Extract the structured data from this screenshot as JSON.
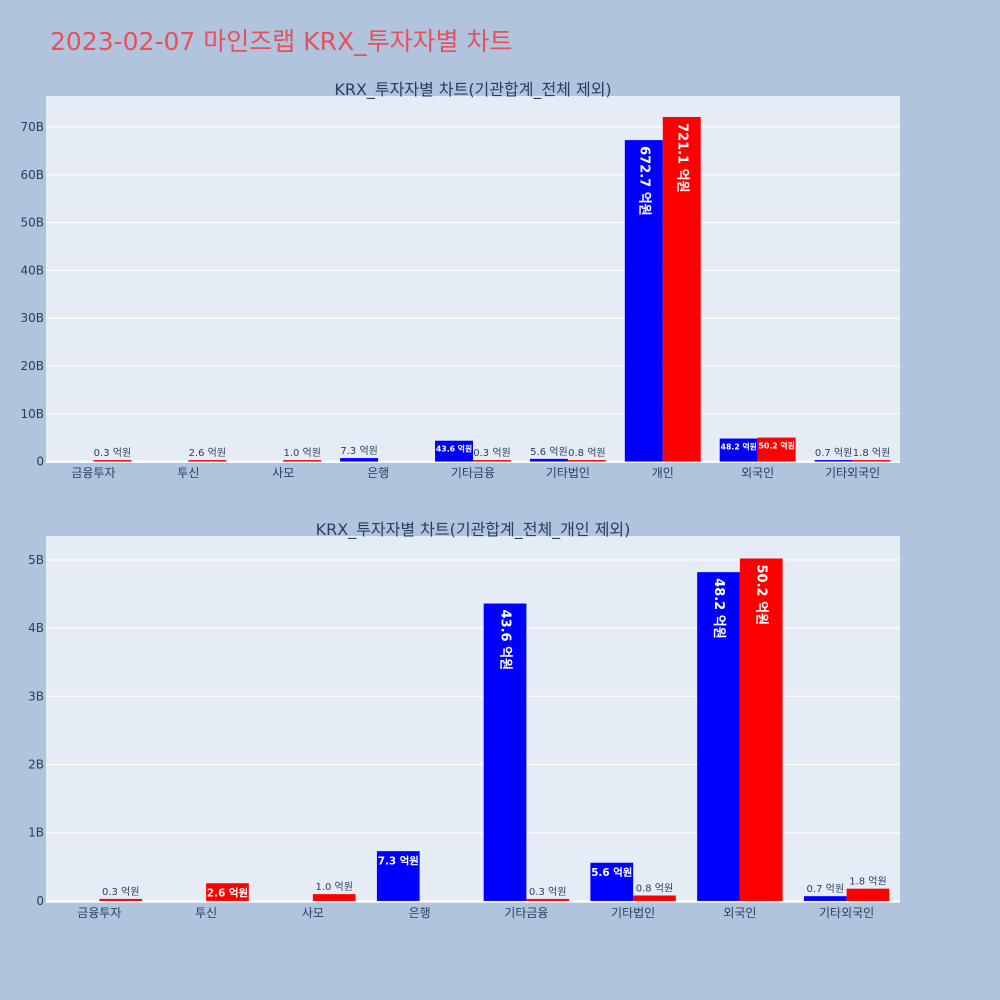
{
  "page": {
    "title": "2023-02-07 마인즈랩 KRX_투자자별 차트"
  },
  "colors": {
    "buy": "#0000ff",
    "sell": "#ff0000",
    "plot_bg": "#e5ecf6",
    "page_bg": "#b0c4de",
    "title": "#e8505b"
  },
  "chart_data": [
    {
      "type": "bar",
      "title": "KRX_투자자별 차트(기관합계_전체 제외)",
      "categories": [
        "금융투자",
        "투신",
        "사모",
        "은행",
        "기타금융",
        "기타법인",
        "개인",
        "외국인",
        "기타외국인"
      ],
      "series": [
        {
          "color": "#0000ff",
          "values": [
            null,
            null,
            null,
            0.73,
            4.36,
            0.56,
            67.27,
            4.82,
            0.07
          ],
          "labels": [
            "",
            "",
            "",
            "7.3 억원",
            "43.6 억원",
            "5.6 억원",
            "672.7 억원",
            "48.2 억원",
            "0.7 억원"
          ]
        },
        {
          "color": "#ff0000",
          "values": [
            0.03,
            0.26,
            0.1,
            null,
            0.03,
            0.08,
            72.11,
            5.02,
            0.18
          ],
          "labels": [
            "0.3 억원",
            "2.6 억원",
            "1.0 억원",
            "",
            "0.3 억원",
            "0.8 억원",
            "721.1 억원",
            "50.2 억원",
            "1.8 억원"
          ]
        }
      ],
      "yticks": [
        0,
        10,
        20,
        30,
        40,
        50,
        60,
        70
      ],
      "ytick_labels": [
        "0",
        "10B",
        "20B",
        "30B",
        "40B",
        "50B",
        "60B",
        "70B"
      ],
      "ylim": [
        -0.3,
        76.5
      ],
      "grid": true
    },
    {
      "type": "bar",
      "title": "KRX_투자자별 차트(기관합계_전체_개인 제외)",
      "categories": [
        "금융투자",
        "투신",
        "사모",
        "은행",
        "기타금융",
        "기타법인",
        "외국인",
        "기타외국인"
      ],
      "series": [
        {
          "color": "#0000ff",
          "values": [
            null,
            null,
            null,
            0.73,
            4.36,
            0.56,
            4.82,
            0.07
          ],
          "labels": [
            "",
            "",
            "",
            "7.3 억원",
            "43.6 억원",
            "5.6 억원",
            "48.2 억원",
            "0.7 억원"
          ]
        },
        {
          "color": "#ff0000",
          "values": [
            0.03,
            0.26,
            0.1,
            null,
            0.03,
            0.08,
            5.02,
            0.18
          ],
          "labels": [
            "0.3 억원",
            "2.6 억원",
            "1.0 억원",
            "",
            "0.3 억원",
            "0.8 억원",
            "50.2 억원",
            "1.8 억원"
          ]
        }
      ],
      "yticks": [
        0,
        1,
        2,
        3,
        4,
        5
      ],
      "ytick_labels": [
        "0",
        "1B",
        "2B",
        "3B",
        "4B",
        "5B"
      ],
      "ylim": [
        -0.03,
        5.35
      ],
      "grid": true
    }
  ]
}
